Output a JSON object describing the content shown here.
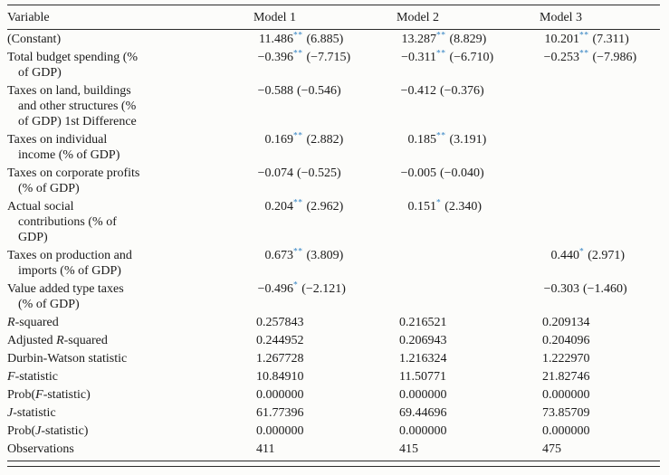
{
  "colors": {
    "star": "#2d7fc1",
    "rule": "#2b2b2b",
    "text": "#1b1b1b",
    "background": "#fcfcfa"
  },
  "table": {
    "headers": [
      "Variable",
      "Model 1",
      "Model 2",
      "Model 3"
    ],
    "rows": [
      {
        "name": "constant",
        "lines": [
          [
            "(Constant)"
          ]
        ],
        "cells": [
          {
            "coef": "11.486",
            "stars": "**",
            "t": "(6.885)"
          },
          {
            "coef": "13.287",
            "stars": "**",
            "t": "(8.829)"
          },
          {
            "coef": "10.201",
            "stars": "**",
            "t": "(7.311)"
          }
        ]
      },
      {
        "name": "total-budget-spending",
        "lines": [
          [
            "Total budget spending (%"
          ],
          [
            "of GDP)"
          ]
        ],
        "cells": [
          {
            "coef": "−0.396",
            "stars": "**",
            "t": "(−7.715)"
          },
          {
            "coef": "−0.311",
            "stars": "**",
            "t": "(−6.710)"
          },
          {
            "coef": "−0.253",
            "stars": "**",
            "t": "(−7.986)"
          }
        ]
      },
      {
        "name": "taxes-land-buildings",
        "lines": [
          [
            "Taxes on land, buildings"
          ],
          [
            "and other structures (%"
          ],
          [
            "of GDP) 1st Difference"
          ]
        ],
        "cells": [
          {
            "coef": "−0.588",
            "stars": "",
            "t": "(−0.546)"
          },
          {
            "coef": "−0.412",
            "stars": "",
            "t": "(−0.376)"
          },
          null
        ]
      },
      {
        "name": "taxes-individual-income",
        "lines": [
          [
            "Taxes on individual"
          ],
          [
            "income (% of GDP)"
          ]
        ],
        "cells": [
          {
            "coef": "0.169",
            "stars": "**",
            "t": "(2.882)"
          },
          {
            "coef": "0.185",
            "stars": "**",
            "t": "(3.191)"
          },
          null
        ]
      },
      {
        "name": "taxes-corporate-profits",
        "lines": [
          [
            "Taxes on corporate profits"
          ],
          [
            "(% of GDP)"
          ]
        ],
        "cells": [
          {
            "coef": "−0.074",
            "stars": "",
            "t": "(−0.525)"
          },
          {
            "coef": "−0.005",
            "stars": "",
            "t": "(−0.040)"
          },
          null
        ]
      },
      {
        "name": "actual-social-contributions",
        "lines": [
          [
            "Actual social"
          ],
          [
            "contributions (% of"
          ],
          [
            "GDP)"
          ]
        ],
        "cells": [
          {
            "coef": "0.204",
            "stars": "**",
            "t": "(2.962)"
          },
          {
            "coef": "0.151",
            "stars": "*",
            "t": "(2.340)"
          },
          null
        ]
      },
      {
        "name": "taxes-production-imports",
        "lines": [
          [
            "Taxes on production and"
          ],
          [
            "imports (% of GDP)"
          ]
        ],
        "cells": [
          {
            "coef": "0.673",
            "stars": "**",
            "t": "(3.809)"
          },
          null,
          {
            "coef": "0.440",
            "stars": "*",
            "t": "(2.971)"
          }
        ]
      },
      {
        "name": "value-added-type-taxes",
        "lines": [
          [
            "Value added type taxes"
          ],
          [
            "(% of GDP)"
          ]
        ],
        "cells": [
          {
            "coef": "−0.496",
            "stars": "*",
            "t": "(−2.121)"
          },
          null,
          {
            "coef": "−0.303",
            "stars": "",
            "t": "(−1.460)"
          }
        ]
      },
      {
        "name": "r-squared",
        "lines": [
          [
            {
              "t": "R",
              "i": true
            },
            "-squared"
          ]
        ],
        "cells": [
          "0.257843",
          "0.216521",
          "0.209134"
        ]
      },
      {
        "name": "adjusted-r-squared",
        "lines": [
          [
            "Adjusted ",
            {
              "t": "R",
              "i": true
            },
            "-squared"
          ]
        ],
        "cells": [
          "0.244952",
          "0.206943",
          "0.204096"
        ]
      },
      {
        "name": "durbin-watson-statistic",
        "lines": [
          [
            "Durbin-Watson statistic"
          ]
        ],
        "cells": [
          "1.267728",
          "1.216324",
          "1.222970"
        ]
      },
      {
        "name": "f-statistic",
        "lines": [
          [
            {
              "t": "F",
              "i": true
            },
            "-statistic"
          ]
        ],
        "cells": [
          "10.84910",
          "11.50771",
          "21.82746"
        ]
      },
      {
        "name": "prob-f-statistic",
        "lines": [
          [
            "Prob(",
            {
              "t": "F",
              "i": true
            },
            "-statistic)"
          ]
        ],
        "cells": [
          "0.000000",
          "0.000000",
          "0.000000"
        ]
      },
      {
        "name": "j-statistic",
        "lines": [
          [
            {
              "t": "J",
              "i": true
            },
            "-statistic"
          ]
        ],
        "cells": [
          "61.77396",
          "69.44696",
          "73.85709"
        ]
      },
      {
        "name": "prob-j-statistic",
        "lines": [
          [
            "Prob(",
            {
              "t": "J",
              "i": true
            },
            "-statistic)"
          ]
        ],
        "cells": [
          "0.000000",
          "0.000000",
          "0.000000"
        ]
      },
      {
        "name": "observations",
        "lines": [
          [
            "Observations"
          ]
        ],
        "cells": [
          "411",
          "415",
          "475"
        ]
      }
    ]
  }
}
